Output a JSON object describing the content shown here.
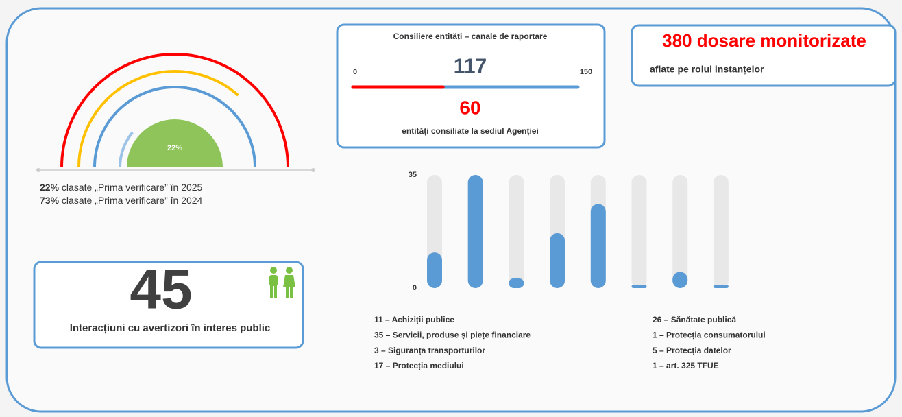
{
  "chart_data": [
    {
      "type": "gauge",
      "values": [
        22,
        73
      ],
      "value_labels": [
        "22%",
        "73%"
      ],
      "colors": [
        "#8fc45a",
        "#ffc000"
      ],
      "ylim": [
        0,
        100
      ],
      "notes": [
        " clasate „Prima verificare” în 2025",
        " clasate „Prima verificare” în 2024"
      ]
    },
    {
      "type": "progress",
      "title": "Consiliere entități – canale de raportare",
      "total": 117,
      "values": [
        60
      ],
      "xlim": [
        0,
        150
      ],
      "xticks": [
        0,
        150
      ],
      "color": "#ff0000",
      "track_color": "#5b9bd5",
      "subtitle": "entități consiliate la sediul Agenției"
    },
    {
      "type": "bar",
      "categories": [
        "11 – Achiziții publice",
        "35 – Servicii, produse și piețe financiare",
        "3 – Siguranța transporturilor",
        "17 – Protecția mediului",
        "26 – Sănătate publică",
        "1 – Protecția consumatorului",
        "5 – Protecția datelor",
        "1 – art. 325 TFUE"
      ],
      "values": [
        11,
        35,
        3,
        17,
        26,
        1,
        5,
        1
      ],
      "color": "#5b9bd5",
      "ylim": [
        0,
        35
      ],
      "yticks": [
        0,
        35
      ]
    }
  ],
  "dossiers": {
    "title": "380 dosare monitorizate",
    "subtitle": "aflate pe rolul instanțelor"
  },
  "interactions": {
    "value": 45,
    "label": "Interacțiuni cu avertizori în interes public"
  }
}
